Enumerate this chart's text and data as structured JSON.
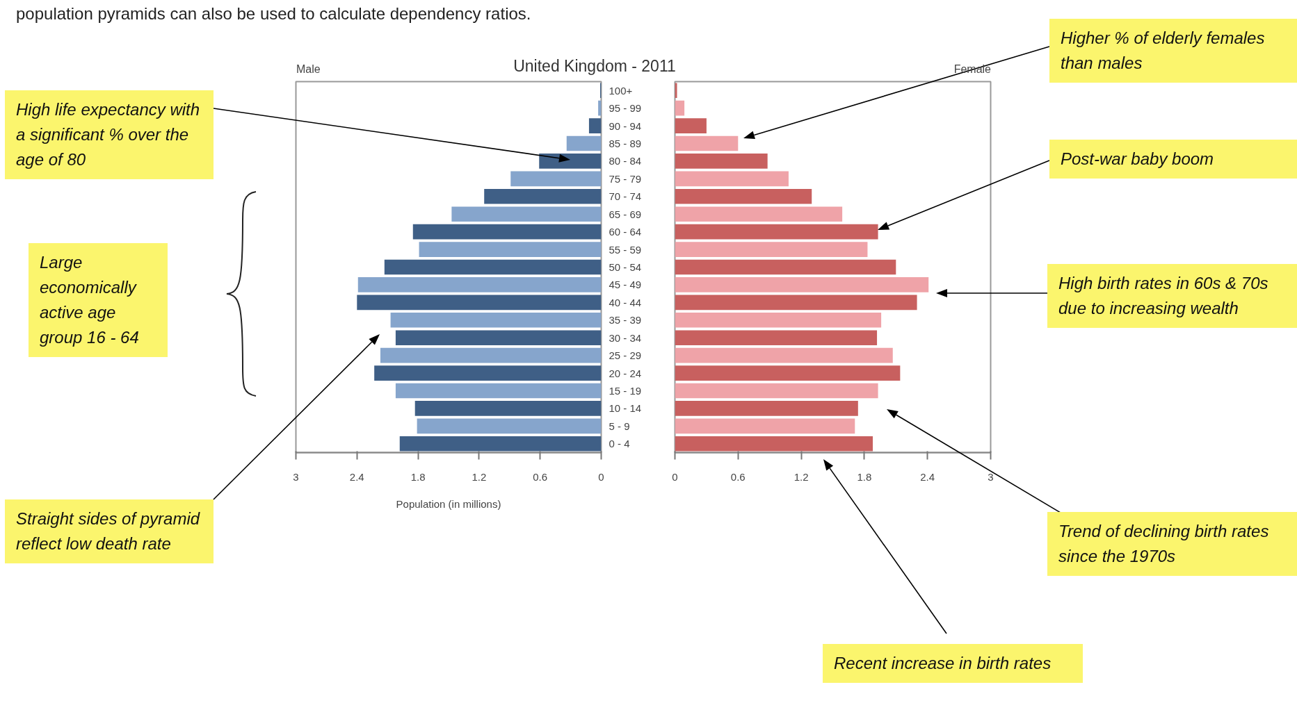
{
  "chart_data": [
    {
      "type": "bar",
      "orientation": "horizontal",
      "title": "United Kingdom - 2011",
      "xlabel": "Population (in millions)",
      "categories": [
        "100+",
        "95 - 99",
        "90 - 94",
        "85 - 89",
        "80 - 84",
        "75 - 79",
        "70 - 74",
        "65 - 69",
        "60 - 64",
        "55 - 59",
        "50 - 54",
        "45 - 49",
        "40 - 44",
        "35 - 39",
        "30 - 34",
        "25 - 29",
        "20 - 24",
        "15 - 19",
        "10 - 14",
        "5 - 9",
        "0 - 4"
      ],
      "series": [
        {
          "name": "Male",
          "colors": [
            "#3f5f86",
            "#86a5cc",
            "#3f5f86",
            "#86a5cc",
            "#3f5f86",
            "#86a5cc",
            "#3f5f86",
            "#86a5cc",
            "#3f5f86",
            "#86a5cc",
            "#3f5f86",
            "#86a5cc",
            "#3f5f86",
            "#86a5cc",
            "#3f5f86",
            "#86a5cc",
            "#3f5f86",
            "#86a5cc",
            "#3f5f86",
            "#86a5cc",
            "#3f5f86"
          ],
          "values": [
            0.01,
            0.03,
            0.12,
            0.34,
            0.61,
            0.89,
            1.15,
            1.47,
            1.85,
            1.79,
            2.13,
            2.39,
            2.4,
            2.07,
            2.02,
            2.17,
            2.23,
            2.02,
            1.83,
            1.81,
            1.98
          ]
        }
      ],
      "xlim": [
        3,
        0
      ],
      "xticks": [
        3,
        2.4,
        1.8,
        1.2,
        0.6,
        0
      ],
      "annotations": [
        "population pyramids can also be used to calculate dependency ratios.",
        "High life expectancy with a significant % over the age of 80",
        "Large economically active age group 16 - 64",
        "Straight sides of pyramid reflect low death rate"
      ]
    },
    {
      "type": "bar",
      "orientation": "horizontal",
      "tick_labels": "x",
      "categories": [
        "100+",
        "95 - 99",
        "90 - 94",
        "85 - 89",
        "80 - 84",
        "75 - 79",
        "70 - 74",
        "65 - 69",
        "60 - 64",
        "55 - 59",
        "50 - 54",
        "45 - 49",
        "40 - 44",
        "35 - 39",
        "30 - 34",
        "25 - 29",
        "20 - 24",
        "15 - 19",
        "10 - 14",
        "5 - 9",
        "0 - 4"
      ],
      "series": [
        {
          "name": "Female",
          "colors": [
            "#c8605f",
            "#efa3a8",
            "#c8605f",
            "#efa3a8",
            "#c8605f",
            "#efa3a8",
            "#c8605f",
            "#efa3a8",
            "#c8605f",
            "#efa3a8",
            "#c8605f",
            "#efa3a8",
            "#c8605f",
            "#efa3a8",
            "#c8605f",
            "#efa3a8",
            "#c8605f",
            "#efa3a8",
            "#c8605f",
            "#efa3a8",
            "#c8605f"
          ],
          "values": [
            0.02,
            0.09,
            0.3,
            0.6,
            0.88,
            1.08,
            1.3,
            1.59,
            1.93,
            1.83,
            2.1,
            2.41,
            2.3,
            1.96,
            1.92,
            2.07,
            2.14,
            1.93,
            1.74,
            1.71,
            1.88
          ]
        }
      ],
      "xlim": [
        0,
        3
      ],
      "xticks": [
        0,
        0.6,
        1.2,
        1.8,
        2.4,
        3
      ],
      "annotations": [
        "Higher % of elderly females than males",
        "Post-war baby boom",
        "High birth rates in 60s & 70s due to increasing wealth",
        "Trend of declining birth rates since the 1970s",
        "Recent increase in birth rates"
      ]
    }
  ]
}
